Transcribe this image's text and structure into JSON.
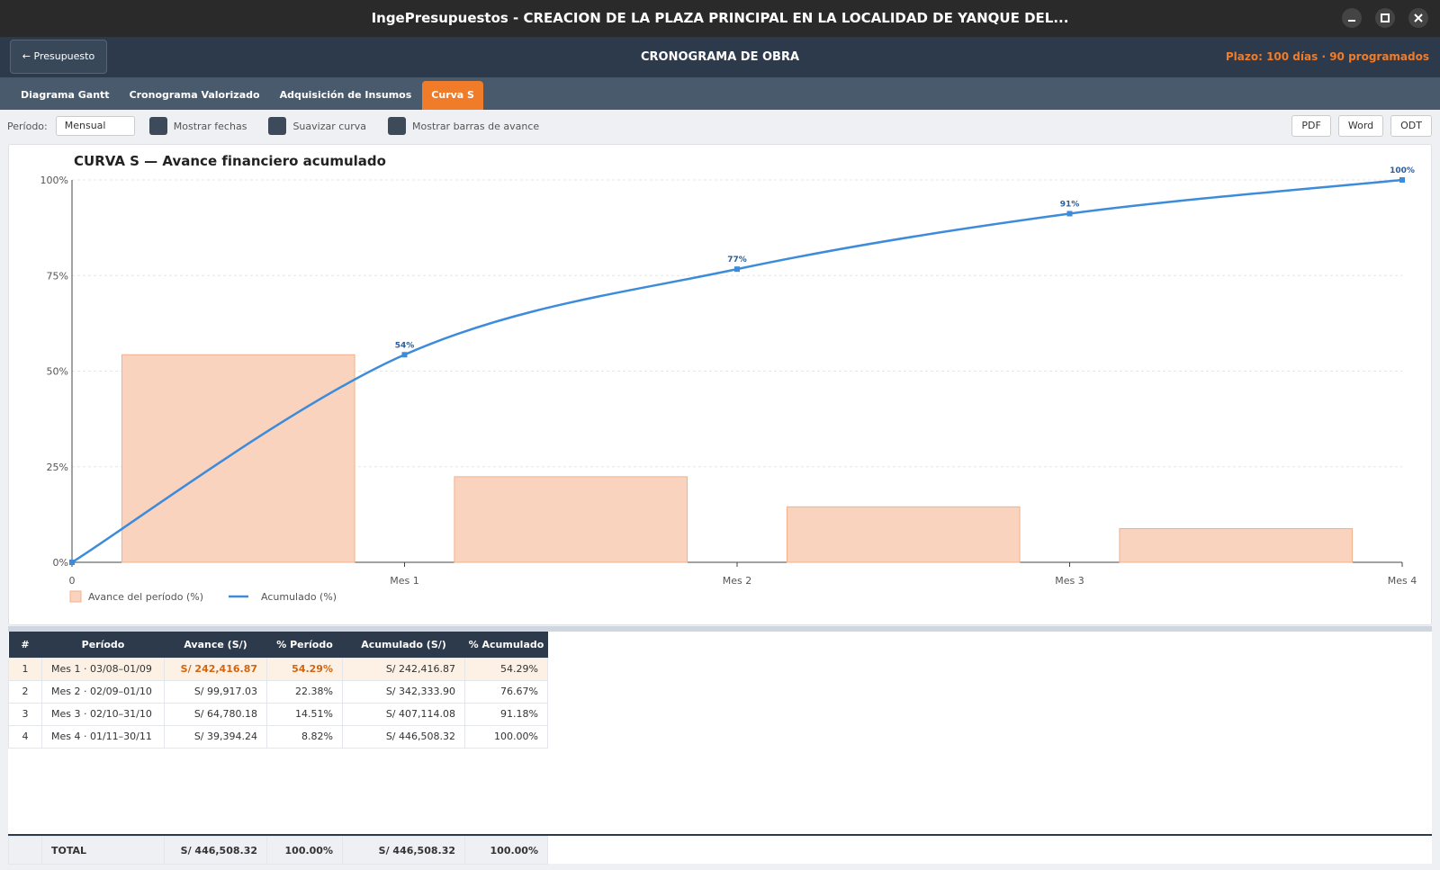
{
  "window": {
    "title": "IngePresupuestos  -  CREACION DE LA PLAZA PRINCIPAL EN LA LOCALIDAD DE YANQUE DEL..."
  },
  "header": {
    "back": "← Presupuesto",
    "title": "CRONOGRAMA DE OBRA",
    "plazo": "Plazo: 100 días",
    "separator": "·",
    "programados": "90 programados"
  },
  "tabs": [
    "Diagrama Gantt",
    "Cronograma Valorizado",
    "Adquisición de Insumos",
    "Curva S"
  ],
  "active_tab": 3,
  "toolbar": {
    "period_label": "Período:",
    "period_value": "Mensual",
    "options": [
      "Mostrar fechas",
      "Suavizar curva",
      "Mostrar barras de avance"
    ],
    "exports": [
      "PDF",
      "Word",
      "ODT"
    ]
  },
  "chart_data": {
    "type": "combo",
    "title": "CURVA S — Avance financiero acumulado",
    "categories": [
      "0",
      "Mes 1",
      "Mes 2",
      "Mes 3",
      "Mes 4"
    ],
    "series": [
      {
        "name": "Avance del período (%)",
        "type": "bar",
        "color": "#f9d3bd",
        "values": [
          null,
          54.29,
          22.38,
          14.51,
          8.82
        ]
      },
      {
        "name": "Acumulado (%)",
        "type": "line",
        "color": "#3d8bdb",
        "values": [
          0,
          54.29,
          76.67,
          91.18,
          100
        ],
        "value_labels": [
          null,
          "54%",
          "77%",
          "91%",
          "100%"
        ]
      }
    ],
    "ylim": [
      0,
      100
    ],
    "yticks": [
      {
        "value": 0,
        "label": "0%"
      },
      {
        "value": 25,
        "label": "25%"
      },
      {
        "value": 50,
        "label": "50%"
      },
      {
        "value": 75,
        "label": "75%"
      },
      {
        "value": 100,
        "label": "100%"
      }
    ],
    "grid": true,
    "smooth": true
  },
  "table": {
    "columns": [
      "#",
      "Período",
      "Avance (S/)",
      "% Período",
      "Acumulado (S/)",
      "% Acumulado"
    ],
    "rows": [
      [
        "1",
        "Mes 1 · 03/08–01/09",
        "S/ 242,416.87",
        "54.29%",
        "S/ 242,416.87",
        "54.29%"
      ],
      [
        "2",
        "Mes 2 · 02/09–01/10",
        "S/ 99,917.03",
        "22.38%",
        "S/ 342,333.90",
        "76.67%"
      ],
      [
        "3",
        "Mes 3 · 02/10–31/10",
        "S/ 64,780.18",
        "14.51%",
        "S/ 407,114.08",
        "91.18%"
      ],
      [
        "4",
        "Mes 4 · 01/11–30/11",
        "S/ 39,394.24",
        "8.82%",
        "S/ 446,508.32",
        "100.00%"
      ]
    ],
    "total": [
      "TOTAL",
      "S/ 446,508.32",
      "100.00%",
      "S/ 446,508.32",
      "100.00%"
    ]
  }
}
